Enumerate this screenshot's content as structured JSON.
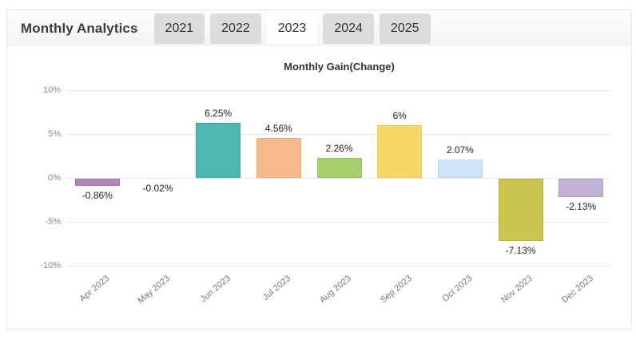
{
  "header": {
    "title": "Monthly Analytics",
    "tabs": [
      {
        "label": "2021",
        "selected": false
      },
      {
        "label": "2022",
        "selected": false
      },
      {
        "label": "2023",
        "selected": true
      },
      {
        "label": "2024",
        "selected": false
      },
      {
        "label": "2025",
        "selected": false
      }
    ]
  },
  "chart_data": {
    "type": "bar",
    "title": "Monthly Gain(Change)",
    "categories": [
      "Apr 2023",
      "May 2023",
      "Jun 2023",
      "Jul 2023",
      "Aug 2023",
      "Sep 2023",
      "Oct 2023",
      "Nov 2023",
      "Dec 2023"
    ],
    "values": [
      -0.86,
      -0.02,
      6.25,
      4.56,
      2.26,
      6,
      2.07,
      -7.13,
      -2.13
    ],
    "value_labels": [
      "-0.86%",
      "-0.02%",
      "6.25%",
      "4.56%",
      "2.26%",
      "6%",
      "2.07%",
      "-7.13%",
      "-2.13%"
    ],
    "bar_fill_colors": [
      "#b286b8",
      "#cccccc",
      "#4cb8b1",
      "#f9bb8d",
      "#a7cf6d",
      "#f6d865",
      "#cfe4f6",
      "#cac54f",
      "#c2b0d5"
    ],
    "bar_border_colors": [
      "#a476ab",
      "#bbbbbb",
      "#3caaa3",
      "#f2a977",
      "#97c258",
      "#eecb4e",
      "#b9d7ef",
      "#bab542",
      "#b29fc7"
    ],
    "xlabel": "",
    "ylabel": "",
    "ylim": [
      -10,
      10
    ],
    "ytick_labels": [
      "10%",
      "5%",
      "0%",
      "-5%",
      "-10%"
    ],
    "grid": true,
    "legend": "none",
    "gridline_color": "#e6e6e6"
  }
}
